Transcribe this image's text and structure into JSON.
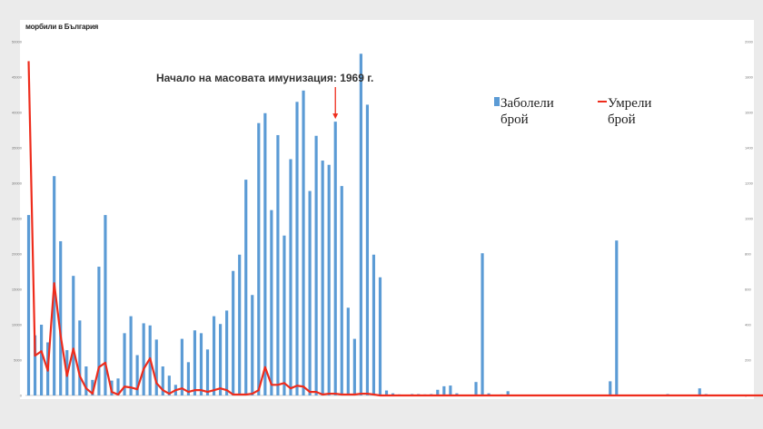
{
  "header": {
    "label": "морбили в България"
  },
  "chart_data": {
    "type": "bar+line",
    "annotation": "Начало на масовата имунизация: 1969 г.",
    "annotation_category_index": 48,
    "y_left_ticks": [
      "0",
      "5000",
      "10000",
      "15000",
      "20000",
      "25000",
      "30000",
      "35000",
      "40000",
      "45000",
      "50000"
    ],
    "y_right_ticks": [
      "0",
      "200",
      "400",
      "600",
      "800",
      "1000",
      "1200",
      "1400",
      "1600",
      "1800",
      "2000"
    ],
    "ylim_left": [
      0,
      50000
    ],
    "ylim_right": [
      0,
      2000
    ],
    "series": [
      {
        "name": "Заболели брой",
        "type": "bar",
        "color": "#5b9bd5",
        "values": [
          25500,
          8500,
          10000,
          7500,
          31000,
          21800,
          6400,
          16900,
          10600,
          4100,
          2200,
          18200,
          25500,
          2100,
          2400,
          8800,
          11200,
          5700,
          10200,
          9900,
          7900,
          4100,
          2800,
          1500,
          8000,
          4700,
          9200,
          8800,
          6500,
          11200,
          10100,
          12000,
          17600,
          19900,
          30500,
          14200,
          38500,
          39900,
          26200,
          36800,
          22600,
          33400,
          41500,
          43100,
          28900,
          36700,
          33200,
          32600,
          38700,
          29600,
          12400,
          8000,
          48300,
          41100,
          19900,
          16700,
          700,
          300,
          150,
          100,
          200,
          200,
          150,
          200,
          800,
          1300,
          1400,
          300,
          100,
          100,
          1900,
          20100,
          300,
          100,
          150,
          600,
          100,
          100,
          100,
          100,
          100,
          100,
          100,
          100,
          100,
          100,
          100,
          100,
          100,
          100,
          100,
          2000,
          21900,
          100,
          100,
          100,
          100,
          100,
          100,
          100,
          200,
          100,
          100,
          100,
          100,
          1000,
          200,
          100,
          100,
          100,
          100,
          100
        ]
      },
      {
        "name": "Умрели брой",
        "type": "line",
        "color": "#ee2c1c",
        "values": [
          1890,
          225,
          250,
          140,
          635,
          340,
          110,
          265,
          110,
          40,
          10,
          160,
          185,
          20,
          5,
          50,
          45,
          35,
          150,
          210,
          70,
          30,
          10,
          30,
          40,
          20,
          30,
          30,
          20,
          30,
          40,
          30,
          5,
          5,
          5,
          10,
          30,
          160,
          60,
          60,
          70,
          40,
          55,
          50,
          20,
          20,
          5,
          10,
          10,
          5,
          5,
          5,
          10,
          10,
          5,
          0,
          0,
          0,
          0,
          0,
          0,
          0,
          0,
          0,
          0,
          0,
          0,
          0,
          0,
          0,
          0,
          0,
          0,
          0,
          0,
          0,
          0,
          0,
          0,
          0,
          0,
          0,
          0,
          0,
          0,
          0,
          0,
          0,
          0,
          0,
          0,
          0,
          0,
          0,
          0,
          0,
          0,
          0,
          0,
          0,
          0,
          0,
          0,
          0,
          0,
          0,
          0,
          0,
          0,
          0,
          0,
          0,
          0,
          0,
          0,
          0,
          0,
          0,
          0,
          0
        ]
      }
    ],
    "legend": [
      {
        "label_line1": "Заболели",
        "label_line2": "брой"
      },
      {
        "label_line1": "Умрели",
        "label_line2": "брой"
      }
    ],
    "legend_position": "top-right"
  }
}
